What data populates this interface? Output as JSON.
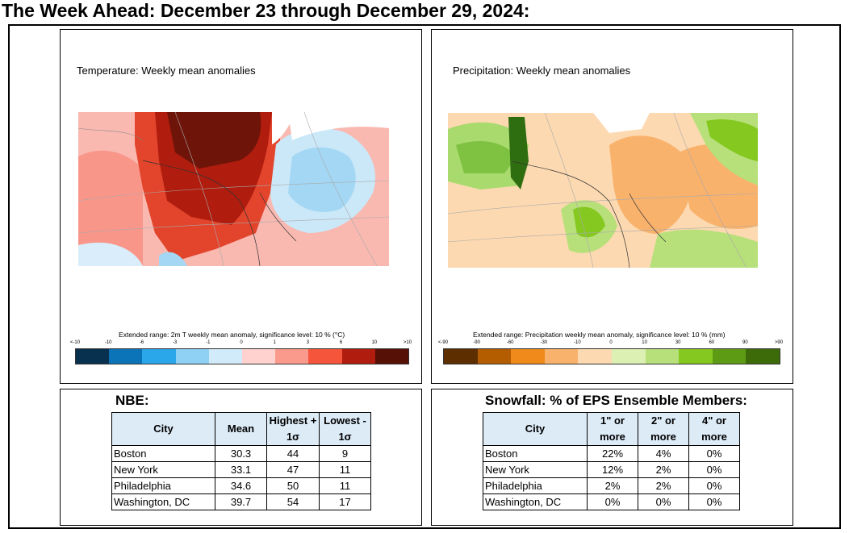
{
  "page_title": "The Week Ahead: December 23 through December 29, 2024:",
  "temperature": {
    "title": "Temperature: Weekly mean anomalies",
    "caption": "Extended range: 2m T weekly mean anomaly, significance level: 10 % (°C)",
    "ticks": [
      "<-10",
      "-10",
      "-6",
      "-3",
      "-1",
      "0",
      "1",
      "3",
      "6",
      "10",
      ">10"
    ],
    "colors": [
      "#08304f",
      "#0b74b8",
      "#2aa7ea",
      "#8fd0f5",
      "#d1ebfa",
      "#ffd2cf",
      "#fa9a8c",
      "#f5553a",
      "#b01d0e",
      "#561006"
    ]
  },
  "precipitation": {
    "title": "Precipitation: Weekly mean anomalies",
    "caption": "Extended range: Precipitation weekly mean anomaly, significance level: 10 % (mm)",
    "ticks": [
      "<-90",
      "-90",
      "-60",
      "-30",
      "-10",
      "0",
      "10",
      "30",
      "60",
      "90",
      ">90"
    ],
    "colors": [
      "#5c2e00",
      "#b35c00",
      "#f08a1a",
      "#f9b26c",
      "#fcd9b0",
      "#dcf0b4",
      "#b7e07a",
      "#84c820",
      "#5e9b14",
      "#3d6b0a"
    ]
  },
  "nbe": {
    "title": "NBE:",
    "headers": {
      "city": "City",
      "mean": "Mean",
      "high_1": "Highest +",
      "high_2": "1σ",
      "low_1": "Lowest -",
      "low_2": "1σ"
    },
    "rows": [
      {
        "city": "Boston",
        "mean": "30.3",
        "high": "44",
        "low": "9"
      },
      {
        "city": "New York",
        "mean": "33.1",
        "high": "47",
        "low": "11"
      },
      {
        "city": "Philadelphia",
        "mean": "34.6",
        "high": "50",
        "low": "11"
      },
      {
        "city": "Washington, DC",
        "mean": "39.7",
        "high": "54",
        "low": "17"
      }
    ]
  },
  "snowfall": {
    "title": "Snowfall: % of EPS Ensemble Members:",
    "headers": {
      "city": "City",
      "c1_1": "1\" or",
      "c1_2": "more",
      "c2_1": "2\" or",
      "c2_2": "more",
      "c4_1": "4\" or",
      "c4_2": "more"
    },
    "rows": [
      {
        "city": "Boston",
        "one": "22%",
        "two": "4%",
        "four": "0%"
      },
      {
        "city": "New York",
        "one": "12%",
        "two": "2%",
        "four": "0%"
      },
      {
        "city": "Philadelphia",
        "one": "2%",
        "two": "2%",
        "four": "0%"
      },
      {
        "city": "Washington, DC",
        "one": "0%",
        "two": "0%",
        "four": "0%"
      }
    ]
  }
}
